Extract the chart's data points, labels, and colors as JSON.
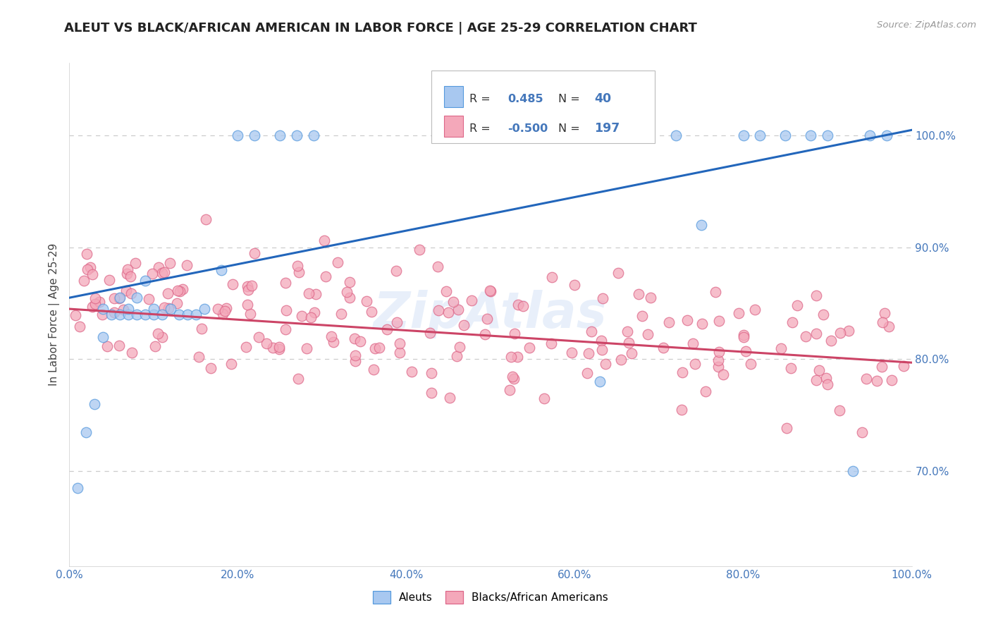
{
  "title": "ALEUT VS BLACK/AFRICAN AMERICAN IN LABOR FORCE | AGE 25-29 CORRELATION CHART",
  "source": "Source: ZipAtlas.com",
  "ylabel": "In Labor Force | Age 25-29",
  "x_min": 0.0,
  "x_max": 1.0,
  "y_min": 0.615,
  "y_max": 1.065,
  "grid_color": "#cccccc",
  "background_color": "#ffffff",
  "aleut_fill": "#a8c8f0",
  "aleut_edge": "#5599dd",
  "black_fill": "#f4a8ba",
  "black_edge": "#dd6688",
  "aleut_line_color": "#2266bb",
  "black_line_color": "#cc4466",
  "aleut_R": 0.485,
  "aleut_N": 40,
  "black_R": -0.5,
  "black_N": 197,
  "legend_label_aleut": "Aleuts",
  "legend_label_black": "Blacks/African Americans",
  "title_color": "#222222",
  "source_color": "#999999",
  "tick_color": "#4477bb",
  "ylabel_color": "#444444",
  "watermark_color": "#ccddf5",
  "aleut_line_y0": 0.855,
  "aleut_line_y1": 1.005,
  "black_line_y0": 0.845,
  "black_line_y1": 0.797
}
